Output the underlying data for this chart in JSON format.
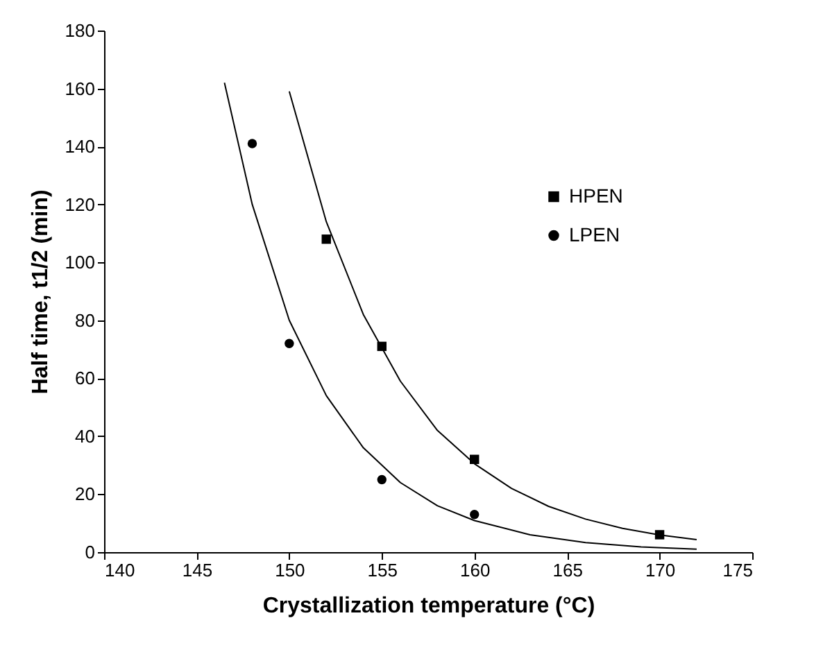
{
  "chart_data": {
    "type": "scatter",
    "xlabel": "Crystallization temperature (°C)",
    "ylabel": "Half time, t1/2 (min)",
    "xlim": [
      140,
      175
    ],
    "xticks": [
      140,
      145,
      150,
      155,
      160,
      165,
      170,
      175
    ],
    "ylim": [
      0,
      180
    ],
    "yticks": [
      0,
      20,
      40,
      60,
      80,
      100,
      120,
      140,
      160,
      180
    ],
    "grid": false,
    "legend": "top right",
    "series": [
      {
        "name": "HPEN",
        "color": "#000000",
        "marker": "square",
        "x": [
          152,
          155,
          160,
          170
        ],
        "values": [
          108,
          71,
          32,
          6
        ]
      },
      {
        "name": "LPEN",
        "color": "#000000",
        "marker": "circle",
        "x": [
          148,
          150,
          155,
          160
        ],
        "values": [
          141,
          72,
          25,
          13
        ]
      },
      {
        "type": "line",
        "color": "#000000",
        "x": [
          150,
          152,
          154,
          156,
          158,
          160,
          162,
          164,
          166,
          168,
          170,
          172
        ],
        "values": [
          159,
          114,
          82,
          59,
          42,
          30.5,
          22,
          15.8,
          11.4,
          8.2,
          5.9,
          4.3
        ]
      },
      {
        "type": "line",
        "color": "#000000",
        "x": [
          146.5,
          148,
          150,
          152,
          154,
          156,
          158,
          160,
          163,
          166,
          169,
          172
        ],
        "values": [
          162,
          120,
          80,
          54,
          36,
          24,
          16,
          10.9,
          6,
          3.3,
          1.8,
          1
        ]
      }
    ]
  }
}
